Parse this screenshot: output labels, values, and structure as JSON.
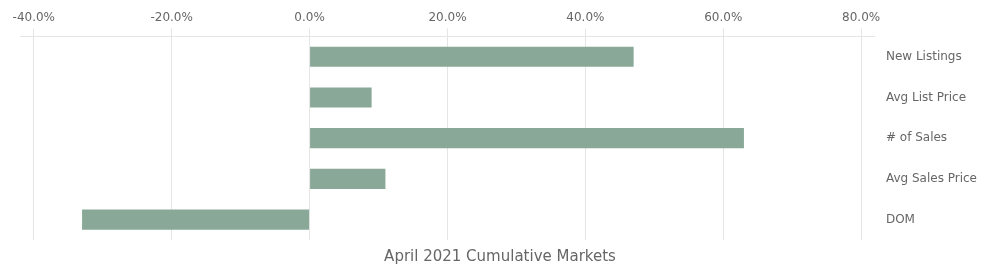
{
  "chart_data": {
    "type": "bar",
    "orientation": "horizontal",
    "title": "April 2021 Cumulative Markets",
    "categories": [
      "New Listings",
      "Avg List Price",
      "# of Sales",
      "Avg Sales Price",
      "DOM"
    ],
    "values": [
      0.47,
      0.09,
      0.63,
      0.11,
      -0.33
    ],
    "color": "#8aA898",
    "xlim": [
      -0.42,
      0.82
    ],
    "xticks": [
      {
        "value": -0.4,
        "label": "-40.0%"
      },
      {
        "value": -0.2,
        "label": "-20.0%"
      },
      {
        "value": 0.0,
        "label": "0.0%"
      },
      {
        "value": 0.2,
        "label": "20.0%"
      },
      {
        "value": 0.4,
        "label": "40.0%"
      },
      {
        "value": 0.6,
        "label": "60.0%"
      },
      {
        "value": 0.8,
        "label": "80.0%"
      }
    ],
    "grid": true
  }
}
